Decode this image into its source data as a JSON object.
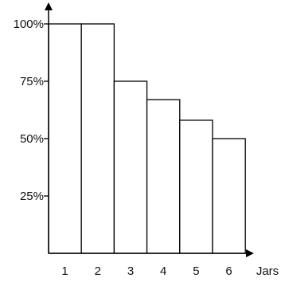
{
  "chart_data": {
    "type": "bar",
    "title": "",
    "xlabel": "Jars",
    "ylabel": "",
    "categories": [
      "1",
      "2",
      "3",
      "4",
      "5",
      "6"
    ],
    "values": [
      100,
      100,
      75,
      67,
      58,
      50
    ],
    "ylim": [
      0,
      100
    ],
    "yticks": [
      {
        "value": 25,
        "label": "25%"
      },
      {
        "value": 50,
        "label": "50%"
      },
      {
        "value": 75,
        "label": "75%"
      },
      {
        "value": 100,
        "label": "100%"
      }
    ],
    "grid": false,
    "legend": "none",
    "colors": {
      "bar_fill": "#ffffff",
      "bar_stroke": "#000000",
      "axis": "#000000"
    }
  }
}
